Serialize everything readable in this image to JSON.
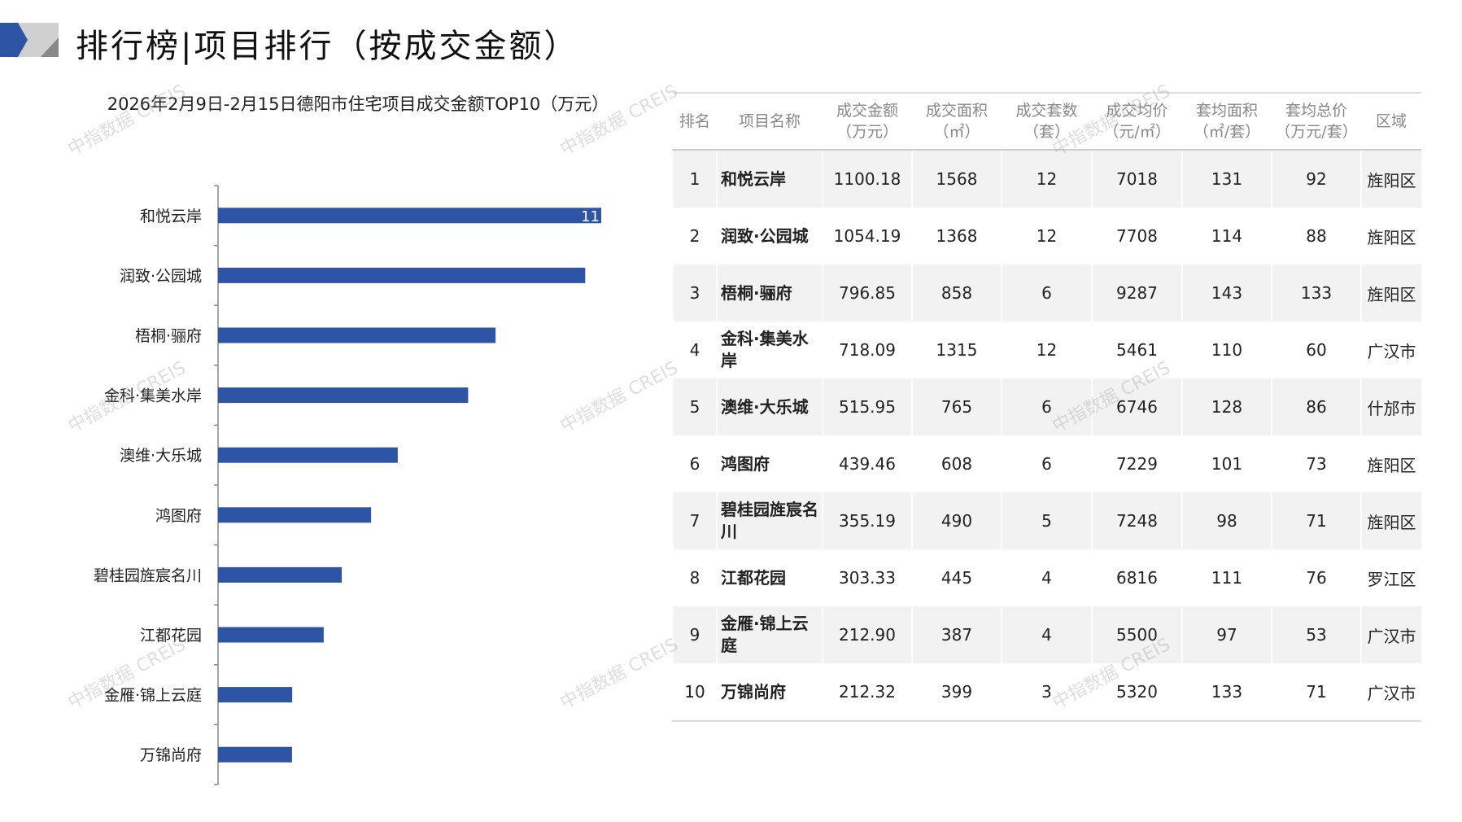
{
  "header": {
    "title": "排行榜|项目排行（按成交金额）"
  },
  "watermark": "中指数据 CREIS",
  "chart_data": {
    "type": "bar",
    "orientation": "horizontal",
    "title": "2026年2月9日-2月15日德阳市住宅项目成交金额TOP10（万元）",
    "categories": [
      "和悦云岸",
      "润致·公园城",
      "梧桐·骊府",
      "金科·集美水岸",
      "澳维·大乐城",
      "鸿图府",
      "碧桂园旌宸名川",
      "江都花园",
      "金雁·锦上云庭",
      "万锦尚府"
    ],
    "values": [
      1100.18,
      1054.19,
      796.85,
      718.09,
      515.95,
      439.46,
      355.19,
      303.33,
      212.9,
      212.32
    ],
    "visible_data_label": "11",
    "color": "#2e55a5",
    "grid": false
  },
  "table": {
    "headers": [
      [
        "排名"
      ],
      [
        "项目名称"
      ],
      [
        "成交金额",
        "（万元）"
      ],
      [
        "成交面积",
        "（㎡）"
      ],
      [
        "成交套数",
        "（套）"
      ],
      [
        "成交均价",
        "（元/㎡）"
      ],
      [
        "套均面积",
        "（㎡/套）"
      ],
      [
        "套均总价",
        "（万元/套）"
      ],
      [
        "区域"
      ]
    ],
    "rows": [
      [
        "1",
        "和悦云岸",
        "1100.18",
        "1568",
        "12",
        "7018",
        "131",
        "92",
        "旌阳区"
      ],
      [
        "2",
        "润致·公园城",
        "1054.19",
        "1368",
        "12",
        "7708",
        "114",
        "88",
        "旌阳区"
      ],
      [
        "3",
        "梧桐·骊府",
        "796.85",
        "858",
        "6",
        "9287",
        "143",
        "133",
        "旌阳区"
      ],
      [
        "4",
        "金科·集美水岸",
        "718.09",
        "1315",
        "12",
        "5461",
        "110",
        "60",
        "广汉市"
      ],
      [
        "5",
        "澳维·大乐城",
        "515.95",
        "765",
        "6",
        "6746",
        "128",
        "86",
        "什邡市"
      ],
      [
        "6",
        "鸿图府",
        "439.46",
        "608",
        "6",
        "7229",
        "101",
        "73",
        "旌阳区"
      ],
      [
        "7",
        "碧桂园旌宸名川",
        "355.19",
        "490",
        "5",
        "7248",
        "98",
        "71",
        "旌阳区"
      ],
      [
        "8",
        "江都花园",
        "303.33",
        "445",
        "4",
        "6816",
        "111",
        "76",
        "罗江区"
      ],
      [
        "9",
        "金雁·锦上云庭",
        "212.90",
        "387",
        "4",
        "5500",
        "97",
        "53",
        "广汉市"
      ],
      [
        "10",
        "万锦尚府",
        "212.32",
        "399",
        "3",
        "5320",
        "133",
        "71",
        "广汉市"
      ]
    ]
  }
}
